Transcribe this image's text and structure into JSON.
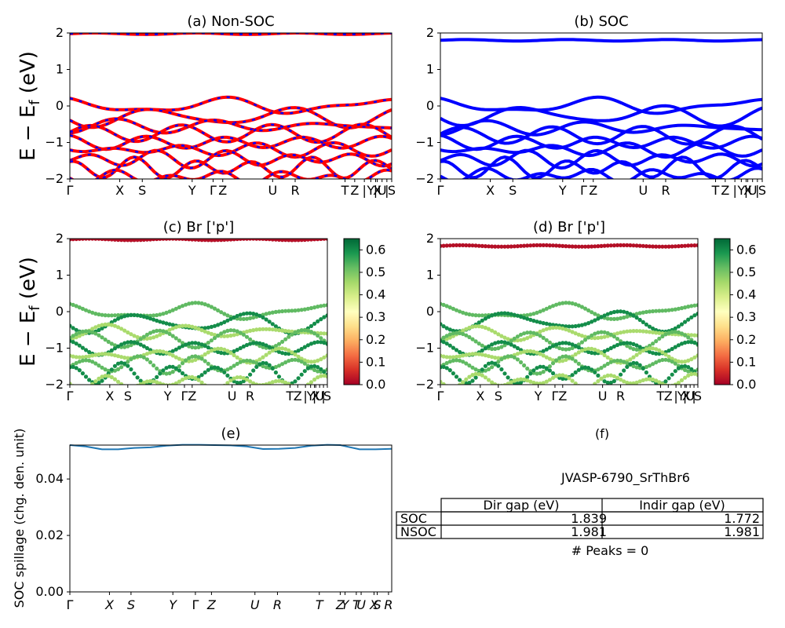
{
  "figure": {
    "row_ylabel": "E − E",
    "row_ylabel_sub": "f",
    "row_ylabel_unit": " (eV)",
    "spillage_ylabel": "SOC spillage (chg. den. unit)"
  },
  "colors": {
    "nsoc_band": "#ff0000",
    "nsoc_overlay": "#0000ff",
    "soc_band": "#0000ff",
    "spillage_line": "#1f77b4",
    "colormap": [
      "#a50026",
      "#d73027",
      "#f46d43",
      "#fdae61",
      "#fee08b",
      "#ffffbf",
      "#d9ef8b",
      "#a6d96a",
      "#66bd63",
      "#1a9850",
      "#006837"
    ]
  },
  "chart_data": [
    {
      "id": "a",
      "type": "line",
      "title": "(a) Non-SOC",
      "ylim": [
        -2,
        2
      ],
      "yticks": [
        "2",
        "1",
        "0",
        "−1",
        "−2"
      ],
      "kpath": [
        {
          "label": "Γ",
          "k": 0
        },
        {
          "label": "X",
          "k": 0.155
        },
        {
          "label": "S",
          "k": 0.225
        },
        {
          "label": "Y",
          "k": 0.38
        },
        {
          "label": "Γ",
          "k": 0.445
        },
        {
          "label": "Z",
          "k": 0.475
        },
        {
          "label": "U",
          "k": 0.63
        },
        {
          "label": "R",
          "k": 0.7
        },
        {
          "label": "T",
          "k": 0.855
        },
        {
          "label": "Z",
          "k": 0.885
        },
        {
          "label": "|",
          "k": 0.915
        },
        {
          "label": "Y",
          "k": 0.935
        },
        {
          "label": "|",
          "k": 0.95
        },
        {
          "label": "X",
          "k": 0.955
        },
        {
          "label": "U",
          "k": 0.97
        },
        {
          "label": "|",
          "k": 0.985
        },
        {
          "label": "S",
          "k": 1.0
        }
      ],
      "style": "nsoc",
      "band_centers": [
        1.98,
        0.0,
        -0.3,
        -0.55,
        -0.75,
        -1.0,
        -1.2,
        -1.45,
        -1.7,
        -1.95
      ]
    },
    {
      "id": "b",
      "type": "line",
      "title": "(b) SOC",
      "ylim": [
        -2,
        2
      ],
      "yticks": [
        "2",
        "1",
        "0",
        "−1",
        "−2"
      ],
      "kpath": [
        {
          "label": "Γ",
          "k": 0
        },
        {
          "label": "X",
          "k": 0.155
        },
        {
          "label": "S",
          "k": 0.225
        },
        {
          "label": "Y",
          "k": 0.38
        },
        {
          "label": "Γ",
          "k": 0.445
        },
        {
          "label": "Z",
          "k": 0.475
        },
        {
          "label": "U",
          "k": 0.63
        },
        {
          "label": "R",
          "k": 0.7
        },
        {
          "label": "T",
          "k": 0.855
        },
        {
          "label": "Z",
          "k": 0.885
        },
        {
          "label": "|",
          "k": 0.915
        },
        {
          "label": "Y",
          "k": 0.935
        },
        {
          "label": "|",
          "k": 0.95
        },
        {
          "label": "X",
          "k": 0.955
        },
        {
          "label": "U",
          "k": 0.97
        },
        {
          "label": "|",
          "k": 0.985
        },
        {
          "label": "S",
          "k": 1.0
        }
      ],
      "style": "soc",
      "band_centers": [
        1.8,
        0.0,
        -0.25,
        -0.6,
        -0.8,
        -1.0,
        -1.2,
        -1.45,
        -1.7,
        -1.9
      ]
    },
    {
      "id": "c",
      "type": "scatter",
      "title": "(c)  Br ['p']",
      "ylim": [
        -2,
        2
      ],
      "yticks": [
        "2",
        "1",
        "0",
        "−1",
        "−2"
      ],
      "kpath": [
        {
          "label": "Γ",
          "k": 0
        },
        {
          "label": "X",
          "k": 0.155
        },
        {
          "label": "S",
          "k": 0.225
        },
        {
          "label": "Y",
          "k": 0.38
        },
        {
          "label": "Γ",
          "k": 0.445
        },
        {
          "label": "Z",
          "k": 0.475
        },
        {
          "label": "U",
          "k": 0.63
        },
        {
          "label": "R",
          "k": 0.7
        },
        {
          "label": "T",
          "k": 0.855
        },
        {
          "label": "Z",
          "k": 0.885
        },
        {
          "label": "|",
          "k": 0.915
        },
        {
          "label": "Y",
          "k": 0.935
        },
        {
          "label": "|",
          "k": 0.95
        },
        {
          "label": "X",
          "k": 0.955
        },
        {
          "label": "U",
          "k": 0.97
        },
        {
          "label": "|",
          "k": 0.985
        },
        {
          "label": "S",
          "k": 1.0
        }
      ],
      "style": "proj_nsoc",
      "band_centers": [
        1.98,
        0.0,
        -0.3,
        -0.55,
        -0.75,
        -1.0,
        -1.2,
        -1.45,
        -1.7,
        -1.95
      ],
      "colorbar": {
        "min": 0.0,
        "max": 0.65,
        "ticks": [
          "0.0",
          "0.1",
          "0.2",
          "0.3",
          "0.4",
          "0.5",
          "0.6"
        ]
      }
    },
    {
      "id": "d",
      "type": "scatter",
      "title": "(d) Br ['p']",
      "ylim": [
        -2,
        2
      ],
      "yticks": [
        "2",
        "1",
        "0",
        "−1",
        "−2"
      ],
      "kpath": [
        {
          "label": "Γ",
          "k": 0
        },
        {
          "label": "X",
          "k": 0.155
        },
        {
          "label": "S",
          "k": 0.225
        },
        {
          "label": "Y",
          "k": 0.38
        },
        {
          "label": "Γ",
          "k": 0.445
        },
        {
          "label": "Z",
          "k": 0.475
        },
        {
          "label": "U",
          "k": 0.63
        },
        {
          "label": "R",
          "k": 0.7
        },
        {
          "label": "T",
          "k": 0.855
        },
        {
          "label": "Z",
          "k": 0.885
        },
        {
          "label": "|",
          "k": 0.915
        },
        {
          "label": "Y",
          "k": 0.935
        },
        {
          "label": "|",
          "k": 0.95
        },
        {
          "label": "X",
          "k": 0.955
        },
        {
          "label": "U",
          "k": 0.97
        },
        {
          "label": "|",
          "k": 0.985
        },
        {
          "label": "S",
          "k": 1.0
        }
      ],
      "style": "proj_soc",
      "band_centers": [
        1.8,
        0.0,
        -0.25,
        -0.6,
        -0.8,
        -1.0,
        -1.2,
        -1.45,
        -1.7,
        -1.9
      ],
      "colorbar": {
        "min": 0.0,
        "max": 0.65,
        "ticks": [
          "0.0",
          "0.1",
          "0.2",
          "0.3",
          "0.4",
          "0.5",
          "0.6"
        ]
      }
    },
    {
      "id": "e",
      "type": "line",
      "title": "(e)",
      "ylim": [
        0,
        0.052
      ],
      "yticks": [
        "0.00",
        "0.02",
        "0.04"
      ],
      "ytick_values": [
        0.0,
        0.02,
        0.04
      ],
      "kpath": [
        {
          "label": "Γ",
          "k": 0
        },
        {
          "label": "X",
          "k": 0.123
        },
        {
          "label": "S",
          "k": 0.19
        },
        {
          "label": "Y",
          "k": 0.32
        },
        {
          "label": "Γ",
          "k": 0.39
        },
        {
          "label": "Z",
          "k": 0.44
        },
        {
          "label": "U",
          "k": 0.575
        },
        {
          "label": "R",
          "k": 0.645
        },
        {
          "label": "T",
          "k": 0.775
        },
        {
          "label": "Z",
          "k": 0.84
        },
        {
          "label": "Y",
          "k": 0.855
        },
        {
          "label": "T",
          "k": 0.89
        },
        {
          "label": "U",
          "k": 0.905
        },
        {
          "label": "X",
          "k": 0.945
        },
        {
          "label": "S",
          "k": 0.955
        },
        {
          "label": "R",
          "k": 0.99
        }
      ],
      "series": [
        {
          "k": [
            0,
            0.05,
            0.1,
            0.15,
            0.2,
            0.25,
            0.3,
            0.35,
            0.4,
            0.45,
            0.5,
            0.55,
            0.6,
            0.65,
            0.7,
            0.75,
            0.8,
            0.84,
            0.86,
            0.9,
            0.95,
            1.0
          ],
          "values": [
            0.052,
            0.0515,
            0.0505,
            0.0505,
            0.051,
            0.0512,
            0.0518,
            0.0521,
            0.0521,
            0.052,
            0.0519,
            0.0515,
            0.0506,
            0.0507,
            0.051,
            0.0518,
            0.0521,
            0.052,
            0.0515,
            0.0505,
            0.0505,
            0.0507
          ]
        }
      ]
    }
  ],
  "table_panel": {
    "title": "(f)",
    "caption": "JVASP-6790_SrThBr6",
    "columns": [
      "Dir gap (eV)",
      "Indir gap (eV)"
    ],
    "rows": [
      {
        "label": "SOC",
        "dir": "1.839",
        "indir": "1.772"
      },
      {
        "label": "NSOC",
        "dir": "1.981",
        "indir": "1.981"
      }
    ],
    "peaks": "# Peaks = 0"
  }
}
